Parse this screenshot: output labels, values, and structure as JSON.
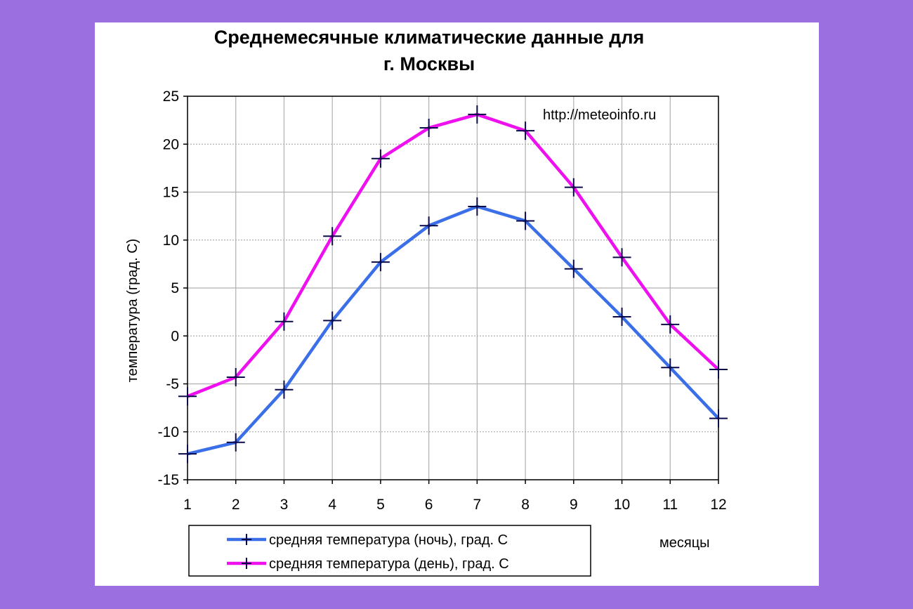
{
  "chart_data": {
    "type": "line",
    "title_line1": "Среднемесячные климатические данные для",
    "title_line2": "г. Москвы",
    "xlabel": "месяцы",
    "ylabel": "температура (град. С)",
    "annotation": "http://meteoinfo.ru",
    "x": [
      1,
      2,
      3,
      4,
      5,
      6,
      7,
      8,
      9,
      10,
      11,
      12
    ],
    "xlim": [
      1,
      12
    ],
    "ylim": [
      -15,
      25
    ],
    "yticks": [
      -15,
      -10,
      -5,
      0,
      5,
      10,
      15,
      20,
      25
    ],
    "grid": true,
    "legend_position": "bottom-left",
    "series": [
      {
        "name": "средняя температура (ночь), град. С",
        "color": "#3b6fe8",
        "marker": "plus",
        "values": [
          -12.3,
          -11.1,
          -5.6,
          1.6,
          7.7,
          11.5,
          13.5,
          12.0,
          7.0,
          2.0,
          -3.3,
          -8.6
        ]
      },
      {
        "name": "средняя температура (день), град. С",
        "color": "#ee10ee",
        "marker": "plus",
        "values": [
          -6.3,
          -4.3,
          1.5,
          10.4,
          18.5,
          21.7,
          23.1,
          21.4,
          15.5,
          8.2,
          1.2,
          -3.5
        ]
      }
    ]
  }
}
